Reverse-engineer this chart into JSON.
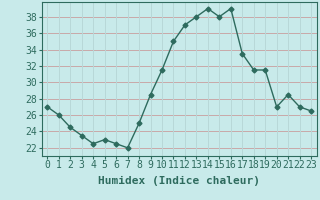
{
  "x": [
    0,
    1,
    2,
    3,
    4,
    5,
    6,
    7,
    8,
    9,
    10,
    11,
    12,
    13,
    14,
    15,
    16,
    17,
    18,
    19,
    20,
    21,
    22,
    23
  ],
  "y": [
    27,
    26,
    24.5,
    23.5,
    22.5,
    23,
    22.5,
    22,
    25,
    28.5,
    31.5,
    35,
    37,
    38,
    39,
    38,
    39,
    33.5,
    31.5,
    31.5,
    27,
    28.5,
    27,
    26.5
  ],
  "line_color": "#2e6b5e",
  "marker": "D",
  "marker_size": 2.5,
  "bg_color": "#c8eaea",
  "grid_color_h": "#c8a8a8",
  "grid_color_v": "#b8d8d8",
  "xlabel": "Humidex (Indice chaleur)",
  "ylabel_ticks": [
    22,
    24,
    26,
    28,
    30,
    32,
    34,
    36,
    38
  ],
  "xlim": [
    -0.5,
    23.5
  ],
  "ylim": [
    21.0,
    39.8
  ],
  "xlabel_fontsize": 8,
  "tick_fontsize": 7,
  "line_width": 1.0
}
